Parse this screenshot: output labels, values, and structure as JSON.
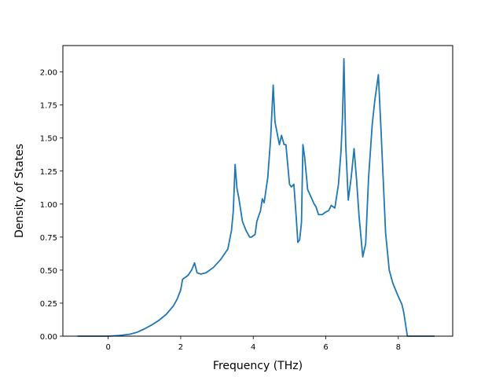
{
  "chart_data": {
    "type": "line",
    "title": "",
    "xlabel": "Frequency (THz)",
    "ylabel": "Density of States",
    "xlim": [
      -1.25,
      9.5
    ],
    "ylim": [
      0,
      2.2
    ],
    "xticks": [
      0,
      2,
      4,
      6,
      8
    ],
    "yticks": [
      0.0,
      0.25,
      0.5,
      0.75,
      1.0,
      1.25,
      1.5,
      1.75,
      2.0
    ],
    "xtick_labels": [
      "0",
      "2",
      "4",
      "6",
      "8"
    ],
    "ytick_labels": [
      "0.00",
      "0.25",
      "0.50",
      "0.75",
      "1.00",
      "1.25",
      "1.50",
      "1.75",
      "2.00"
    ],
    "grid": false,
    "color": "#1f77b4",
    "series": [
      {
        "x": [
          -0.85,
          -0.5,
          0.0,
          0.3,
          0.6,
          0.8,
          1.0,
          1.2,
          1.4,
          1.6,
          1.8,
          1.9,
          2.0,
          2.05,
          2.1,
          2.2,
          2.3,
          2.38,
          2.45,
          2.55,
          2.7,
          2.9,
          3.1,
          3.3,
          3.4,
          3.45,
          3.5,
          3.55,
          3.6,
          3.7,
          3.8,
          3.9,
          3.95,
          4.05,
          4.1,
          4.2,
          4.25,
          4.3,
          4.4,
          4.48,
          4.55,
          4.6,
          4.65,
          4.72,
          4.78,
          4.85,
          4.9,
          4.95,
          5.0,
          5.05,
          5.12,
          5.18,
          5.23,
          5.28,
          5.33,
          5.37,
          5.42,
          5.5,
          5.6,
          5.68,
          5.73,
          5.8,
          5.9,
          6.0,
          6.08,
          6.15,
          6.25,
          6.35,
          6.42,
          6.46,
          6.5,
          6.55,
          6.62,
          6.7,
          6.78,
          6.85,
          6.92,
          7.02,
          7.1,
          7.18,
          7.28,
          7.35,
          7.45,
          7.52,
          7.58,
          7.65,
          7.75,
          7.85,
          8.0,
          8.1,
          8.15,
          8.2,
          8.25,
          9.0
        ],
        "y": [
          0.0,
          0.0,
          0.0,
          0.005,
          0.015,
          0.03,
          0.055,
          0.085,
          0.12,
          0.165,
          0.23,
          0.28,
          0.35,
          0.43,
          0.44,
          0.46,
          0.5,
          0.555,
          0.48,
          0.47,
          0.48,
          0.52,
          0.58,
          0.66,
          0.8,
          0.95,
          1.3,
          1.12,
          1.05,
          0.87,
          0.8,
          0.75,
          0.75,
          0.77,
          0.87,
          0.95,
          1.04,
          1.01,
          1.2,
          1.5,
          1.9,
          1.62,
          1.55,
          1.45,
          1.52,
          1.45,
          1.45,
          1.3,
          1.15,
          1.13,
          1.15,
          0.92,
          0.71,
          0.73,
          0.86,
          1.45,
          1.35,
          1.11,
          1.05,
          1.0,
          0.98,
          0.92,
          0.92,
          0.94,
          0.95,
          0.99,
          0.97,
          1.15,
          1.4,
          1.65,
          2.1,
          1.45,
          1.03,
          1.2,
          1.42,
          1.18,
          0.9,
          0.6,
          0.7,
          1.2,
          1.6,
          1.78,
          1.98,
          1.58,
          1.21,
          0.78,
          0.5,
          0.4,
          0.3,
          0.24,
          0.18,
          0.09,
          0.0,
          0.0
        ]
      }
    ]
  }
}
